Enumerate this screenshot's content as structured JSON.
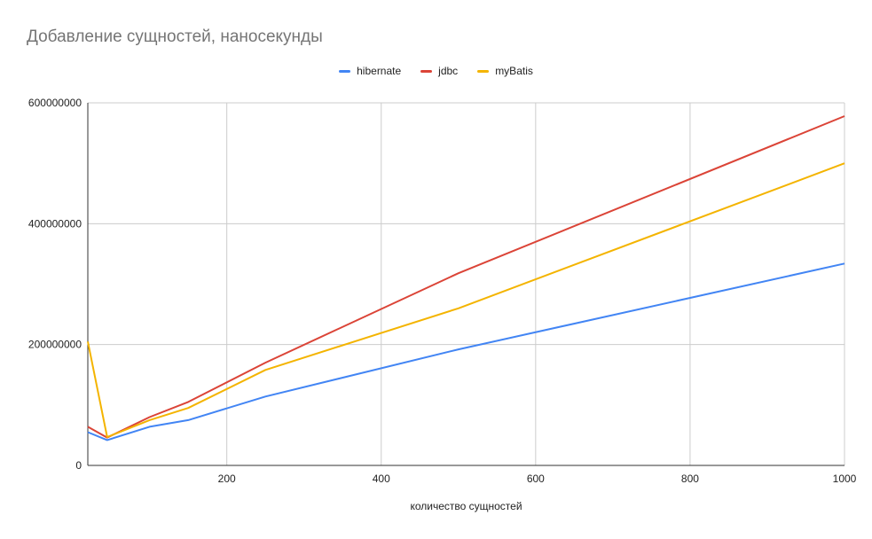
{
  "chart_data": {
    "type": "line",
    "title": "Добавление сущностей, наносекунды",
    "xlabel": "количество сущностей",
    "ylabel": "",
    "xlim": [
      20,
      1000
    ],
    "ylim": [
      0,
      600000000
    ],
    "x_ticks": [
      200,
      400,
      600,
      800,
      1000
    ],
    "y_ticks": [
      0,
      200000000,
      400000000,
      600000000
    ],
    "x_tick_labels": [
      "200",
      "400",
      "600",
      "800",
      "1000"
    ],
    "y_tick_labels": [
      "0",
      "200000000",
      "400000000",
      "600000000"
    ],
    "grid": true,
    "legend_position": "top-center",
    "x": [
      20,
      45,
      100,
      150,
      250,
      500,
      1000
    ],
    "series": [
      {
        "name": "hibernate",
        "color": "#4285f4",
        "values": [
          55000000,
          42000000,
          64000000,
          75000000,
          114000000,
          192000000,
          334000000
        ]
      },
      {
        "name": "jdbc",
        "color": "#db4437",
        "values": [
          64000000,
          46000000,
          80000000,
          105000000,
          170000000,
          318000000,
          578000000
        ]
      },
      {
        "name": "myBatis",
        "color": "#f4b400",
        "values": [
          205000000,
          47000000,
          75000000,
          95000000,
          158000000,
          260000000,
          500000000
        ]
      }
    ]
  }
}
